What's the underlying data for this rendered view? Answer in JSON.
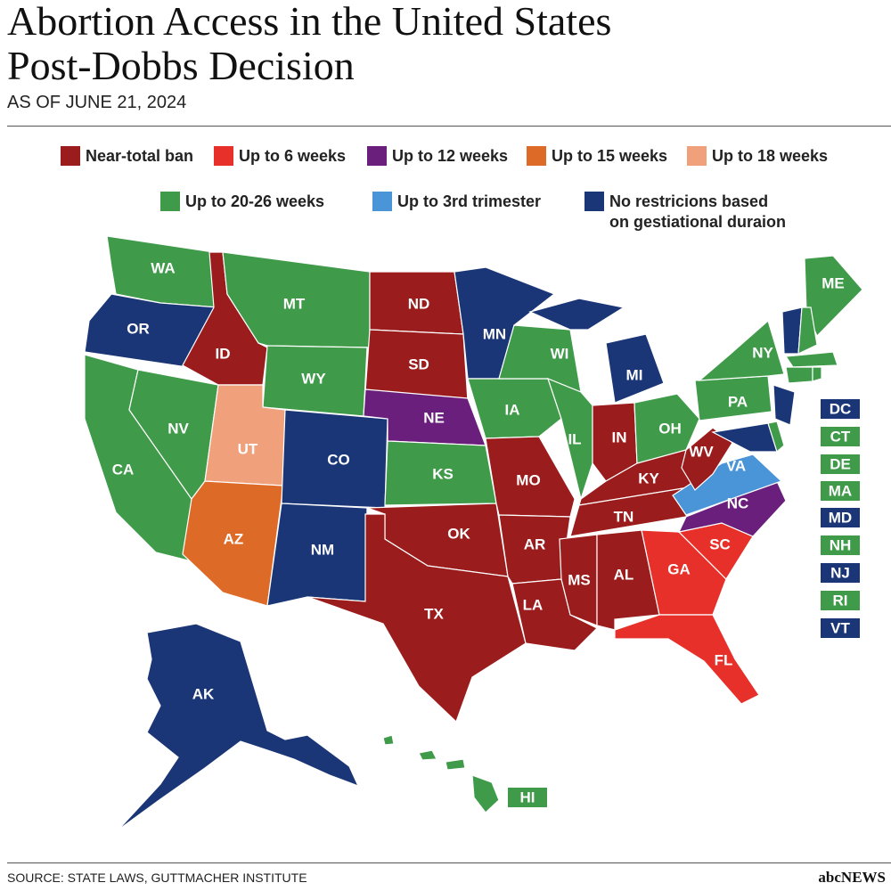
{
  "header": {
    "title": [
      "Abortion Access in the United States",
      "Post-Dobbs Decision"
    ],
    "subtitle": "AS OF JUNE 21, 2024"
  },
  "legend": [
    {
      "label": "Near-total ban",
      "color": "#9b1c1c",
      "states": [
        "ID",
        "ND",
        "SD",
        "MO",
        "AR",
        "OK",
        "TX",
        "LA",
        "MS",
        "AL",
        "TN",
        "KY",
        "WV",
        "IN"
      ]
    },
    {
      "label": "Up to 6 weeks",
      "color": "#e8302a",
      "states": [
        "GA",
        "SC",
        "FL"
      ]
    },
    {
      "label": "Up to 12 weeks",
      "color": "#6b1f7c",
      "states": [
        "NE",
        "NC"
      ]
    },
    {
      "label": "Up to 15 weeks",
      "color": "#de6a28",
      "states": [
        "AZ"
      ]
    },
    {
      "label": "Up to 18 weeks",
      "color": "#f0a07a",
      "states": [
        "UT"
      ]
    },
    {
      "label": "Up to 20-26 weeks",
      "color": "#3f9b49",
      "states": [
        "WA",
        "MT",
        "WY",
        "NV",
        "CA",
        "KS",
        "IA",
        "WI",
        "IL",
        "OH",
        "PA",
        "NY",
        "ME",
        "HI"
      ],
      "inset": [
        "CT",
        "DE",
        "MA",
        "NH",
        "RI"
      ]
    },
    {
      "label": "Up to 3rd trimester",
      "color": "#4a94d8",
      "states": [
        "VA"
      ]
    },
    {
      "label": "No restricions based\non gestiational duraion",
      "color": "#1b3677",
      "states": [
        "OR",
        "CO",
        "NM",
        "MN",
        "MI",
        "AK"
      ],
      "inset": [
        "DC",
        "MD",
        "NJ",
        "VT"
      ]
    }
  ],
  "footer": {
    "source": "SOURCE: STATE LAWS, GUTTMACHER INSTITUTE",
    "logo": "abcNEWS"
  }
}
